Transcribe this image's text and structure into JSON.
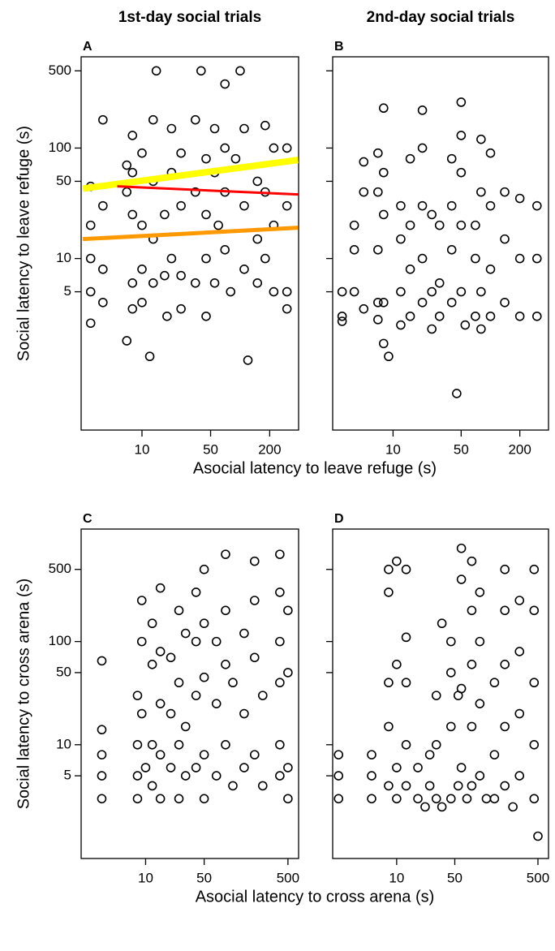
{
  "chart_data": [
    {
      "type": "scatter",
      "title": "1st-day social trials",
      "panel_label": "A",
      "x_label": "Asocial latency to leave refuge (s)",
      "y_label": "Social latency to leave refuge (s)",
      "log_x": true,
      "log_y": true,
      "marker_color": "#000000",
      "xlim": [
        2.4,
        394
      ],
      "ylim": [
        0.28,
        670
      ],
      "xticks": [
        10,
        50,
        200
      ],
      "yticks": [
        5,
        10,
        50,
        100,
        500
      ],
      "x": [
        3,
        3,
        3,
        3,
        3,
        4,
        4,
        4,
        4,
        7,
        7,
        7,
        8,
        8,
        8,
        8,
        8,
        10,
        10,
        10,
        10,
        12,
        13,
        13,
        13,
        13,
        14,
        17,
        17,
        18,
        20,
        20,
        20,
        25,
        25,
        25,
        25,
        35,
        35,
        35,
        40,
        45,
        45,
        45,
        45,
        55,
        55,
        55,
        60,
        70,
        70,
        70,
        70,
        80,
        90,
        100,
        110,
        110,
        110,
        120,
        150,
        150,
        150,
        180,
        180,
        180,
        220,
        220,
        220,
        300,
        300,
        300,
        300
      ],
      "values": [
        45,
        20,
        10,
        5,
        2.6,
        180,
        30,
        8,
        4,
        1.8,
        70,
        40,
        130,
        60,
        25,
        6,
        3.5,
        90,
        20,
        8,
        4,
        1.3,
        180,
        50,
        15,
        6,
        500,
        25,
        7,
        3,
        150,
        60,
        10,
        90,
        30,
        7,
        3.5,
        180,
        40,
        6,
        500,
        80,
        25,
        10,
        3,
        150,
        60,
        6,
        20,
        380,
        100,
        40,
        12,
        5,
        80,
        500,
        150,
        30,
        8,
        1.2,
        50,
        15,
        6,
        160,
        40,
        10,
        100,
        20,
        5,
        100,
        30,
        5,
        3.5
      ],
      "fits": [
        {
          "color": "#ffff00",
          "x": [
            2.5,
            390
          ],
          "values": [
            43,
            78
          ]
        },
        {
          "color": "#ff0000",
          "x": [
            5.6,
            390
          ],
          "values": [
            45,
            38
          ]
        },
        {
          "color": "#ff9900",
          "x": [
            2.5,
            390
          ],
          "values": [
            15,
            19
          ]
        }
      ]
    },
    {
      "type": "scatter",
      "title": "2nd-day social trials",
      "panel_label": "B",
      "log_x": true,
      "log_y": true,
      "marker_color": "#000000",
      "xlim": [
        2.4,
        394
      ],
      "ylim": [
        0.28,
        670
      ],
      "xticks": [
        10,
        50,
        200
      ],
      "x": [
        3,
        3,
        3,
        4,
        4,
        4,
        5,
        5,
        5,
        7,
        7,
        7,
        7,
        7,
        8,
        8,
        8,
        8,
        8,
        9,
        12,
        12,
        12,
        12,
        15,
        15,
        15,
        15,
        20,
        20,
        20,
        20,
        20,
        25,
        25,
        25,
        30,
        30,
        30,
        40,
        40,
        40,
        40,
        45,
        50,
        50,
        50,
        50,
        50,
        55,
        70,
        70,
        70,
        80,
        80,
        80,
        80,
        100,
        100,
        100,
        100,
        140,
        140,
        140,
        200,
        200,
        200,
        300,
        300,
        300
      ],
      "values": [
        3,
        5,
        2.7,
        20,
        12,
        5,
        75,
        40,
        3.5,
        90,
        40,
        12,
        4,
        2.8,
        230,
        60,
        25,
        4,
        1.7,
        1.3,
        30,
        15,
        5,
        2.5,
        80,
        20,
        8,
        3,
        220,
        100,
        30,
        10,
        4,
        25,
        5,
        2.3,
        20,
        6,
        3,
        80,
        30,
        12,
        4,
        0.6,
        260,
        130,
        60,
        20,
        5,
        2.5,
        20,
        10,
        3,
        120,
        40,
        5,
        2.3,
        90,
        30,
        8,
        3,
        40,
        15,
        4,
        35,
        10,
        3,
        30,
        10,
        3
      ]
    },
    {
      "type": "scatter",
      "panel_label": "C",
      "x_label": "Asocial latency to cross arena (s)",
      "y_label": "Social latency to cross arena (s)",
      "log_x": true,
      "log_y": true,
      "marker_color": "#000000",
      "xlim": [
        1.7,
        670
      ],
      "ylim": [
        0.79,
        1230
      ],
      "xticks": [
        10,
        50,
        500
      ],
      "yticks": [
        5,
        10,
        50,
        100,
        500
      ],
      "x": [
        3,
        3,
        3,
        3,
        3,
        8,
        8,
        8,
        8,
        9,
        9,
        9,
        10,
        12,
        12,
        12,
        12,
        15,
        15,
        15,
        15,
        15,
        20,
        20,
        20,
        25,
        25,
        25,
        25,
        30,
        30,
        30,
        40,
        40,
        40,
        40,
        50,
        50,
        50,
        50,
        50,
        70,
        70,
        70,
        90,
        90,
        90,
        90,
        110,
        110,
        150,
        150,
        150,
        200,
        200,
        200,
        200,
        250,
        250,
        400,
        400,
        400,
        400,
        400,
        400,
        500,
        500,
        500,
        500
      ],
      "values": [
        65,
        14,
        8,
        5,
        3,
        30,
        10,
        5,
        3,
        250,
        100,
        20,
        6,
        150,
        60,
        10,
        4,
        330,
        80,
        25,
        8,
        3,
        70,
        20,
        6,
        200,
        40,
        10,
        3,
        120,
        15,
        5,
        300,
        100,
        30,
        6,
        500,
        150,
        45,
        8,
        3,
        100,
        25,
        5,
        700,
        200,
        60,
        10,
        40,
        4,
        120,
        20,
        6,
        600,
        250,
        70,
        8,
        30,
        4,
        700,
        300,
        100,
        40,
        10,
        5,
        200,
        50,
        6,
        3
      ]
    },
    {
      "type": "scatter",
      "panel_label": "D",
      "log_x": true,
      "log_y": true,
      "marker_color": "#000000",
      "xlim": [
        1.7,
        670
      ],
      "ylim": [
        0.79,
        1230
      ],
      "xticks": [
        10,
        50,
        500
      ],
      "x": [
        2,
        2,
        2,
        5,
        5,
        5,
        8,
        8,
        8,
        8,
        8,
        10,
        10,
        10,
        10,
        13,
        13,
        13,
        13,
        13,
        18,
        18,
        22,
        25,
        25,
        30,
        30,
        30,
        35,
        35,
        45,
        45,
        45,
        45,
        55,
        55,
        60,
        60,
        60,
        60,
        70,
        80,
        80,
        80,
        80,
        80,
        100,
        100,
        100,
        100,
        120,
        150,
        150,
        150,
        200,
        200,
        200,
        200,
        200,
        250,
        300,
        300,
        300,
        300,
        450,
        450,
        450,
        450,
        450,
        500
      ],
      "values": [
        8,
        5,
        3,
        5,
        3,
        8,
        500,
        300,
        40,
        15,
        4,
        600,
        60,
        6,
        3,
        500,
        110,
        40,
        10,
        4,
        6,
        3,
        2.5,
        8,
        4,
        30,
        10,
        3,
        150,
        2.5,
        100,
        50,
        15,
        3,
        30,
        4,
        800,
        400,
        35,
        6,
        3,
        600,
        200,
        60,
        15,
        4,
        300,
        100,
        25,
        5,
        3,
        40,
        8,
        3,
        500,
        200,
        60,
        15,
        4,
        2.5,
        250,
        80,
        20,
        5,
        500,
        200,
        40,
        10,
        3,
        1.3
      ]
    }
  ]
}
